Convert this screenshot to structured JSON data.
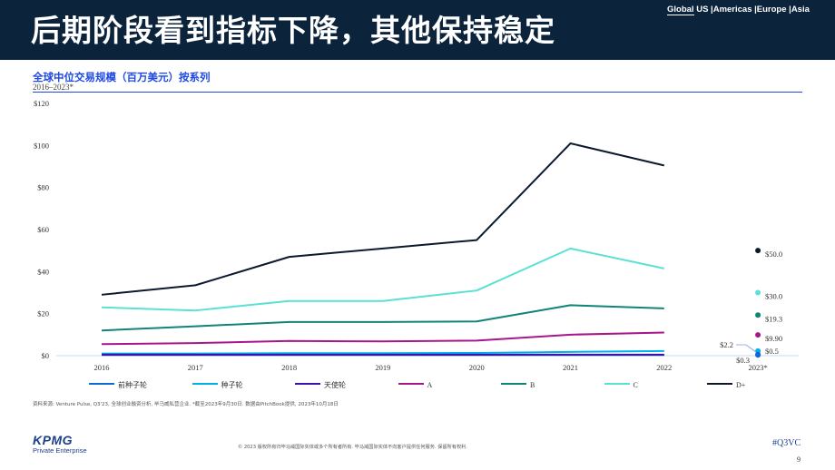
{
  "header": {
    "title": "后期阶段看到指标下降，其他保持稳定",
    "nav": [
      "Global",
      "US",
      "|Americas",
      "|Europe",
      "|Asia"
    ]
  },
  "chart_header": {
    "subtitle": "全球中位交易规模（百万美元）按系列",
    "period": "2016–2023*"
  },
  "colors": {
    "header_bg": "#0c233c",
    "accent_blue": "#1e49e2"
  },
  "chart_data": {
    "type": "line",
    "categories": [
      "2016",
      "2017",
      "2018",
      "2019",
      "2020",
      "2021",
      "2022"
    ],
    "ylim": [
      0,
      120
    ],
    "yticks": [
      0,
      20,
      40,
      60,
      80,
      100,
      120
    ],
    "ytick_labels": [
      "$0",
      "$20",
      "$40",
      "$60",
      "$80",
      "$100",
      "$120"
    ],
    "grid": false,
    "legend_position": "bottom",
    "series": [
      {
        "name": "前种子轮",
        "color": "#0a6bd8",
        "values": [
          0.3,
          0.3,
          0.3,
          0.3,
          0.3,
          0.3,
          0.3
        ]
      },
      {
        "name": "种子轮",
        "color": "#00b1e8",
        "values": [
          1.0,
          1.0,
          1.2,
          1.2,
          1.3,
          1.8,
          2.2
        ]
      },
      {
        "name": "天使轮",
        "color": "#3f0fa8",
        "values": [
          0.5,
          0.5,
          0.5,
          0.5,
          0.5,
          0.5,
          0.5
        ]
      },
      {
        "name": "A",
        "color": "#a8168c",
        "values": [
          5.5,
          6.0,
          7.0,
          6.8,
          7.2,
          10.0,
          11.0
        ]
      },
      {
        "name": "B",
        "color": "#118477",
        "values": [
          12.0,
          14.0,
          16.0,
          16.0,
          16.3,
          24.0,
          22.5
        ]
      },
      {
        "name": "C",
        "color": "#5ae1d4",
        "values": [
          23.0,
          21.5,
          26.0,
          26.0,
          31.0,
          51.0,
          41.5
        ]
      },
      {
        "name": "D+",
        "color": "#0b1a2d",
        "values": [
          29.0,
          33.5,
          47.0,
          51.0,
          55.0,
          101.0,
          90.5
        ]
      }
    ],
    "point_2023": {
      "label": "2023*",
      "points": [
        {
          "series": "D+",
          "value": 50.0,
          "label": "$50.0",
          "color": "#0b1a2d"
        },
        {
          "series": "C",
          "value": 30.0,
          "label": "$30.0",
          "color": "#5ae1d4"
        },
        {
          "series": "B",
          "value": 19.3,
          "label": "$19.3",
          "color": "#118477"
        },
        {
          "series": "A",
          "value": 9.9,
          "label": "$9.90",
          "color": "#a8168c"
        },
        {
          "series": "种子轮",
          "value": 2.2,
          "label": "$2.2",
          "color": "#00b1e8"
        },
        {
          "series": "天使轮",
          "value": 0.5,
          "label": "$0.5",
          "color": "#3f0fa8"
        },
        {
          "series": "前种子轮",
          "value": 0.3,
          "label": "$0.3",
          "color": "#0a6bd8"
        }
      ]
    }
  },
  "footer": {
    "footnote": "资料来源: Venture Pulse, Q3'23, 全球创业融资分析, 毕马威私营企业. *截至2023年9月30日. 数据由PitchBook提供, 2023年10月18日",
    "copyright": "© 2023 版权所有归毕马威国际实体或多个所有者所有. 毕马威国际实体不向客户提供任何服务. 保留所有权利.",
    "logo_text": "KPMG",
    "logo_sub": "Private Enterprise",
    "hashtag": "#Q3VC",
    "page_number": "9"
  }
}
